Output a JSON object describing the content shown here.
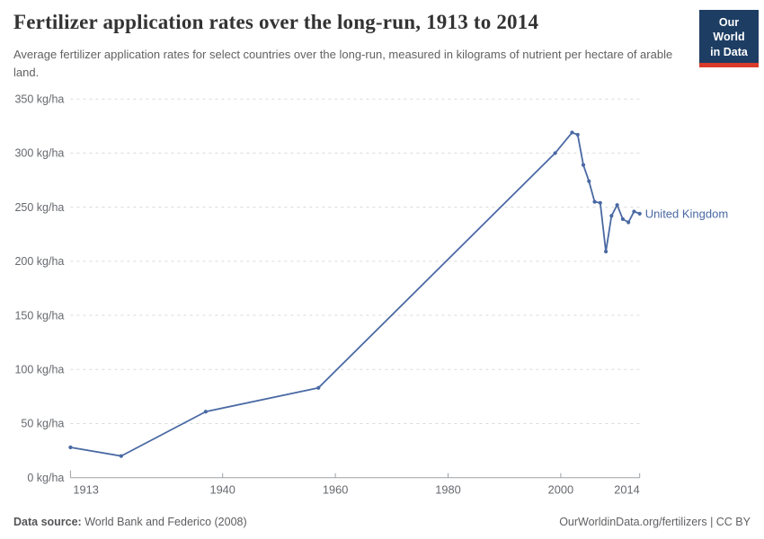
{
  "header": {
    "title": "Fertilizer application rates over the long-run, 1913 to 2014",
    "subtitle": "Average fertilizer application rates for select countries over the long-run, measured in kilograms of nutrient per hectare of arable land."
  },
  "logo": {
    "line1": "Our World",
    "line2": "in Data"
  },
  "chart_data": {
    "type": "line",
    "title": "Fertilizer application rates over the long-run, 1913 to 2014",
    "unit": "kg/ha",
    "xlim": [
      1913,
      2014
    ],
    "ylim": [
      0,
      350
    ],
    "grid": "horizontal-dashed",
    "legend_position": "end-of-line-label",
    "x_ticks": [
      {
        "value": 1913,
        "label": "1913"
      },
      {
        "value": 1940,
        "label": "1940"
      },
      {
        "value": 1960,
        "label": "1960"
      },
      {
        "value": 1980,
        "label": "1980"
      },
      {
        "value": 2000,
        "label": "2000"
      },
      {
        "value": 2014,
        "label": "2014"
      }
    ],
    "y_ticks": [
      {
        "value": 0,
        "label": "0 kg/ha"
      },
      {
        "value": 50,
        "label": "50 kg/ha"
      },
      {
        "value": 100,
        "label": "100 kg/ha"
      },
      {
        "value": 150,
        "label": "150 kg/ha"
      },
      {
        "value": 200,
        "label": "200 kg/ha"
      },
      {
        "value": 250,
        "label": "250 kg/ha"
      },
      {
        "value": 300,
        "label": "300 kg/ha"
      },
      {
        "value": 350,
        "label": "350 kg/ha"
      }
    ],
    "series": [
      {
        "name": "United Kingdom",
        "points": [
          [
            1913,
            28
          ],
          [
            1922,
            20
          ],
          [
            1937,
            61
          ],
          [
            1957,
            83
          ],
          [
            1999,
            300
          ],
          [
            2002,
            319
          ],
          [
            2003,
            317
          ],
          [
            2004,
            289
          ],
          [
            2005,
            274
          ],
          [
            2006,
            255
          ],
          [
            2007,
            254
          ],
          [
            2008,
            209
          ],
          [
            2009,
            242
          ],
          [
            2010,
            252
          ],
          [
            2011,
            239
          ],
          [
            2012,
            236
          ],
          [
            2013,
            246
          ],
          [
            2014,
            244
          ]
        ]
      }
    ]
  },
  "colors": {
    "line": "#4a69a3",
    "grid": "#d9dadc",
    "axis": "#9da1a6",
    "tick_text": "#66696e",
    "logo_bg": "#1d3d63",
    "logo_stripe": "#d93a2b"
  },
  "footer": {
    "source_label": "Data source:",
    "source_value": "World Bank and Federico (2008)",
    "credit": "OurWorldinData.org/fertilizers | CC BY"
  }
}
